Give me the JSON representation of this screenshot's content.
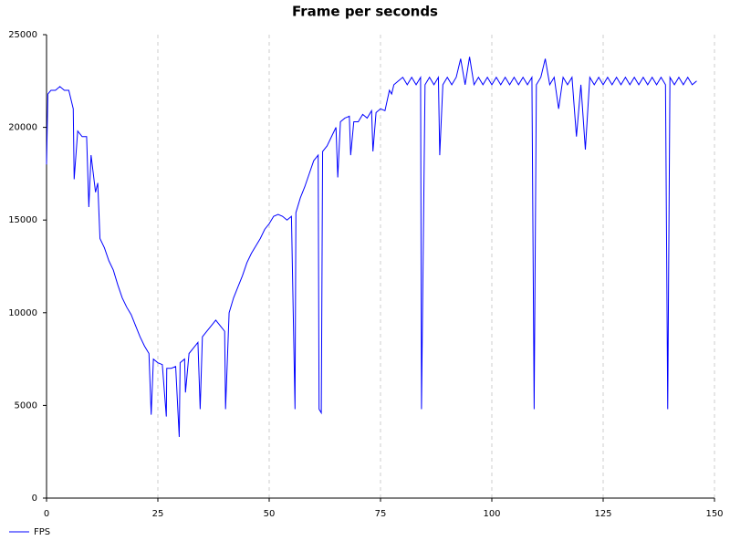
{
  "chart_data": {
    "type": "line",
    "title": "Frame per seconds",
    "x": [
      0,
      0.3,
      1,
      2,
      3,
      4,
      5,
      6,
      6.2,
      7,
      8,
      9,
      9.5,
      10,
      11,
      11.5,
      12,
      13,
      14,
      15,
      16,
      17,
      18,
      19,
      20,
      21,
      22,
      23,
      23.5,
      24,
      25,
      26,
      26.9,
      27,
      28,
      29,
      29.8,
      30,
      31,
      31.2,
      32,
      33,
      34,
      34.5,
      35,
      36,
      37,
      38,
      39,
      40,
      40.2,
      41,
      42,
      43,
      44,
      45,
      46,
      47,
      48,
      49,
      50,
      51,
      52,
      53,
      54,
      55,
      55.8,
      56,
      57,
      58,
      59,
      60,
      61,
      61.2,
      61.7,
      62,
      63,
      64,
      65,
      65.4,
      66,
      67,
      68,
      68.3,
      69,
      70,
      71,
      72,
      73,
      73.3,
      74,
      75,
      76,
      77,
      77.5,
      78,
      79,
      80,
      81,
      82,
      83,
      84,
      84.2,
      85,
      86,
      87,
      88,
      88.3,
      89,
      90,
      91,
      92,
      93,
      94,
      95,
      96,
      97,
      98,
      99,
      100,
      101,
      102,
      103,
      104,
      105,
      106,
      107,
      108,
      109,
      109.5,
      110,
      111,
      112,
      113,
      114,
      115,
      116,
      117,
      118,
      119,
      120,
      121,
      122,
      123,
      124,
      125,
      126,
      127,
      128,
      129,
      130,
      131,
      132,
      133,
      134,
      135,
      136,
      137,
      138,
      139,
      139.5,
      140,
      141,
      142,
      143,
      144,
      145,
      146
    ],
    "series": [
      {
        "name": "FPS",
        "color": "#0000ff",
        "values": [
          18000,
          21800,
          22000,
          22000,
          22200,
          22000,
          22000,
          21000,
          17200,
          19800,
          19500,
          19500,
          15700,
          18500,
          16500,
          17000,
          14000,
          13500,
          12800,
          12300,
          11500,
          10800,
          10300,
          9900,
          9300,
          8700,
          8200,
          7800,
          4500,
          7500,
          7300,
          7200,
          4400,
          7000,
          7000,
          7100,
          3300,
          7300,
          7500,
          5700,
          7800,
          8100,
          8400,
          4800,
          8700,
          9000,
          9300,
          9600,
          9300,
          9000,
          4800,
          10000,
          10800,
          11400,
          12000,
          12700,
          13200,
          13600,
          14000,
          14500,
          14800,
          15200,
          15300,
          15200,
          15000,
          15200,
          4800,
          15400,
          16200,
          16800,
          17500,
          18200,
          18500,
          4800,
          4600,
          18700,
          19000,
          19500,
          20000,
          17300,
          20300,
          20500,
          20600,
          18500,
          20300,
          20300,
          20700,
          20500,
          20900,
          18700,
          20800,
          21000,
          20900,
          22000,
          21800,
          22300,
          22500,
          22700,
          22300,
          22700,
          22300,
          22700,
          4800,
          22300,
          22700,
          22300,
          22700,
          18500,
          22300,
          22700,
          22300,
          22700,
          23700,
          22300,
          23800,
          22300,
          22700,
          22300,
          22700,
          22300,
          22700,
          22300,
          22700,
          22300,
          22700,
          22300,
          22700,
          22300,
          22700,
          4800,
          22300,
          22700,
          23700,
          22300,
          22700,
          21000,
          22700,
          22300,
          22700,
          19500,
          22300,
          18800,
          22700,
          22300,
          22700,
          22300,
          22700,
          22300,
          22700,
          22300,
          22700,
          22300,
          22700,
          22300,
          22700,
          22300,
          22700,
          22300,
          22700,
          22300,
          4800,
          22700,
          22300,
          22700,
          22300,
          22700,
          22300,
          22500
        ]
      }
    ],
    "xlim": [
      0,
      150
    ],
    "xticks": [
      0,
      25,
      50,
      75,
      100,
      125,
      150
    ],
    "ylim": [
      0,
      25000
    ],
    "yticks": [
      0,
      5000,
      10000,
      15000,
      20000,
      25000
    ],
    "grid": true,
    "legend": "bottom-left"
  }
}
